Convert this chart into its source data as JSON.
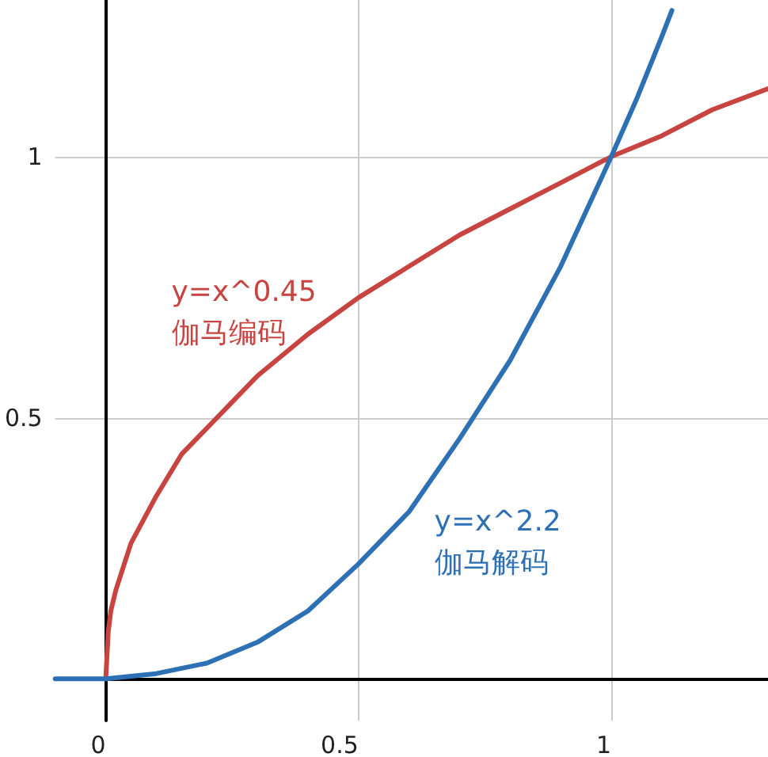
{
  "chart_data": {
    "type": "line",
    "xlim": [
      -0.1,
      1.31
    ],
    "ylim": [
      -0.08,
      1.3
    ],
    "xticks": [
      0,
      0.5,
      1
    ],
    "yticks": [
      0.5,
      1
    ],
    "grid": true,
    "marker": "none",
    "series": [
      {
        "name": "y=x^0.45",
        "color": "#c74440",
        "x": [
          0,
          0.005,
          0.01,
          0.02,
          0.05,
          0.1,
          0.15,
          0.2,
          0.3,
          0.4,
          0.5,
          0.6,
          0.7,
          0.8,
          0.9,
          1,
          1.1,
          1.2,
          1.31
        ],
        "values": [
          0,
          0.09,
          0.13,
          0.17,
          0.26,
          0.35,
          0.43,
          0.48,
          0.58,
          0.66,
          0.73,
          0.79,
          0.85,
          0.9,
          0.95,
          1,
          1.04,
          1.09,
          1.13
        ]
      },
      {
        "name": "y=x^2.2",
        "color": "#2d70b3",
        "x": [
          -0.1,
          0,
          0.1,
          0.2,
          0.3,
          0.4,
          0.5,
          0.6,
          0.7,
          0.8,
          0.9,
          1,
          1.05,
          1.1,
          1.12
        ],
        "values": [
          0,
          0,
          0.01,
          0.03,
          0.07,
          0.13,
          0.22,
          0.32,
          0.46,
          0.61,
          0.79,
          1,
          1.11,
          1.23,
          1.28
        ]
      }
    ],
    "annotations": [
      "伽马编码",
      "伽马解码"
    ]
  }
}
